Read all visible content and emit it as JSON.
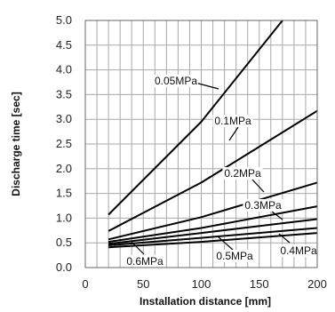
{
  "chart_data": {
    "type": "line",
    "xlabel": "Installation distance [mm]",
    "ylabel": "Discharge time [sec]",
    "xlim": [
      0,
      200
    ],
    "ylim": [
      0,
      5.0
    ],
    "x_ticks": [
      "0",
      "50",
      "100",
      "150",
      "200"
    ],
    "y_ticks": [
      "0.0",
      "0.5",
      "1.0",
      "1.5",
      "2.0",
      "2.5",
      "3.0",
      "3.5",
      "4.0",
      "4.5",
      "5.0"
    ],
    "grid": true,
    "series": [
      {
        "name": "0.05MPa",
        "x": [
          20,
          100,
          170
        ],
        "y": [
          1.07,
          2.95,
          5.0
        ]
      },
      {
        "name": "0.1MPa",
        "x": [
          20,
          100,
          200
        ],
        "y": [
          0.74,
          1.72,
          3.17
        ]
      },
      {
        "name": "0.2MPa",
        "x": [
          20,
          100,
          200
        ],
        "y": [
          0.57,
          1.02,
          1.72
        ]
      },
      {
        "name": "0.3MPa",
        "x": [
          20,
          100,
          200
        ],
        "y": [
          0.52,
          0.8,
          1.24
        ]
      },
      {
        "name": "0.4MPa",
        "x": [
          20,
          100,
          200
        ],
        "y": [
          0.48,
          0.7,
          0.98
        ]
      },
      {
        "name": "0.5MPa",
        "x": [
          20,
          100,
          200
        ],
        "y": [
          0.45,
          0.6,
          0.8
        ]
      },
      {
        "name": "0.6MPa",
        "x": [
          20,
          100,
          200
        ],
        "y": [
          0.41,
          0.52,
          0.7
        ]
      }
    ]
  }
}
